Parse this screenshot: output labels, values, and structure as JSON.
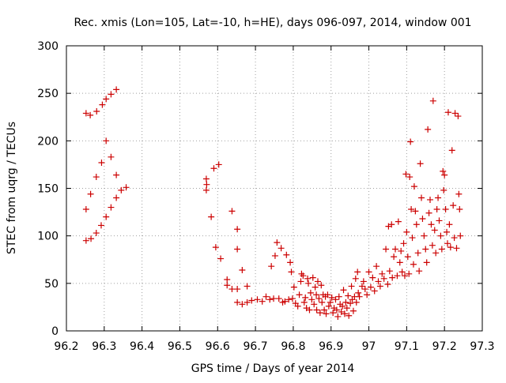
{
  "chart_data": {
    "type": "scatter",
    "title": "Rec. xmis (Lon=105, Lat=-10, h=HE), days 096-097, 2014, window 001",
    "xlabel": "GPS time / Days of year 2014",
    "ylabel": "STEC from uqrg / TECUs",
    "xlim": [
      96.2,
      97.3
    ],
    "ylim": [
      0,
      300
    ],
    "xticks": [
      "96.2",
      "96.3",
      "96.4",
      "96.5",
      "96.6",
      "96.7",
      "96.8",
      "96.9",
      "97",
      "97.1",
      "97.2",
      "97.3"
    ],
    "yticks": [
      "0",
      "50",
      "100",
      "150",
      "200",
      "250",
      "300"
    ],
    "grid": true,
    "marker": "+",
    "color": "#cc0000",
    "points": [
      [
        96.252,
        229
      ],
      [
        96.263,
        227
      ],
      [
        96.28,
        231
      ],
      [
        96.295,
        238
      ],
      [
        96.305,
        244
      ],
      [
        96.318,
        249
      ],
      [
        96.332,
        254
      ],
      [
        96.252,
        128
      ],
      [
        96.264,
        144
      ],
      [
        96.279,
        162
      ],
      [
        96.293,
        177
      ],
      [
        96.305,
        200
      ],
      [
        96.318,
        183
      ],
      [
        96.332,
        164
      ],
      [
        96.345,
        148
      ],
      [
        96.358,
        151
      ],
      [
        96.252,
        95
      ],
      [
        96.265,
        97
      ],
      [
        96.279,
        103
      ],
      [
        96.292,
        111
      ],
      [
        96.305,
        120
      ],
      [
        96.318,
        130
      ],
      [
        96.332,
        140
      ],
      [
        96.57,
        160
      ],
      [
        96.571,
        154
      ],
      [
        96.57,
        148
      ],
      [
        96.59,
        171
      ],
      [
        96.603,
        175
      ],
      [
        96.583,
        120
      ],
      [
        96.595,
        88
      ],
      [
        96.608,
        76
      ],
      [
        96.625,
        54
      ],
      [
        96.625,
        48
      ],
      [
        96.638,
        44
      ],
      [
        96.652,
        44
      ],
      [
        96.638,
        126
      ],
      [
        96.652,
        107
      ],
      [
        96.652,
        86
      ],
      [
        96.665,
        64
      ],
      [
        96.678,
        47
      ],
      [
        96.652,
        30
      ],
      [
        96.665,
        28
      ],
      [
        96.678,
        30
      ],
      [
        96.69,
        32
      ],
      [
        96.705,
        33
      ],
      [
        96.718,
        31
      ],
      [
        96.728,
        36
      ],
      [
        96.738,
        33
      ],
      [
        96.742,
        68
      ],
      [
        96.748,
        34
      ],
      [
        96.752,
        79
      ],
      [
        96.757,
        93
      ],
      [
        96.762,
        34
      ],
      [
        96.768,
        87
      ],
      [
        96.772,
        30
      ],
      [
        96.778,
        31
      ],
      [
        96.782,
        80
      ],
      [
        96.788,
        33
      ],
      [
        96.792,
        72
      ],
      [
        96.795,
        62
      ],
      [
        96.798,
        34
      ],
      [
        96.802,
        46
      ],
      [
        96.806,
        29
      ],
      [
        96.812,
        26
      ],
      [
        96.816,
        38
      ],
      [
        96.82,
        52
      ],
      [
        96.822,
        60
      ],
      [
        96.826,
        58
      ],
      [
        96.829,
        30
      ],
      [
        96.832,
        35
      ],
      [
        96.835,
        24
      ],
      [
        96.838,
        55
      ],
      [
        96.84,
        50
      ],
      [
        96.843,
        22
      ],
      [
        96.846,
        40
      ],
      [
        96.849,
        33
      ],
      [
        96.852,
        56
      ],
      [
        96.855,
        28
      ],
      [
        96.858,
        46
      ],
      [
        96.861,
        38
      ],
      [
        96.862,
        22
      ],
      [
        96.865,
        52
      ],
      [
        96.868,
        34
      ],
      [
        96.871,
        19
      ],
      [
        96.874,
        48
      ],
      [
        96.876,
        30
      ],
      [
        96.879,
        38
      ],
      [
        96.882,
        22
      ],
      [
        96.885,
        36
      ],
      [
        96.887,
        18
      ],
      [
        96.891,
        38
      ],
      [
        96.894,
        26
      ],
      [
        96.898,
        30
      ],
      [
        96.902,
        35
      ],
      [
        96.905,
        19
      ],
      [
        96.908,
        24
      ],
      [
        96.912,
        33
      ],
      [
        96.915,
        22
      ],
      [
        96.918,
        15
      ],
      [
        96.921,
        36
      ],
      [
        96.924,
        28
      ],
      [
        96.927,
        20
      ],
      [
        96.93,
        26
      ],
      [
        96.933,
        43
      ],
      [
        96.936,
        18
      ],
      [
        96.939,
        30
      ],
      [
        96.942,
        24
      ],
      [
        96.945,
        37
      ],
      [
        96.947,
        16
      ],
      [
        96.951,
        29
      ],
      [
        96.954,
        47
      ],
      [
        96.956,
        33
      ],
      [
        96.959,
        21
      ],
      [
        96.962,
        36
      ],
      [
        96.965,
        55
      ],
      [
        96.967,
        30
      ],
      [
        96.97,
        62
      ],
      [
        96.972,
        40
      ],
      [
        96.975,
        36
      ],
      [
        96.982,
        47
      ],
      [
        96.986,
        52
      ],
      [
        96.99,
        44
      ],
      [
        96.995,
        38
      ],
      [
        97.0,
        62
      ],
      [
        97.005,
        46
      ],
      [
        97.01,
        56
      ],
      [
        97.015,
        42
      ],
      [
        97.02,
        68
      ],
      [
        97.025,
        52
      ],
      [
        97.03,
        47
      ],
      [
        97.035,
        60
      ],
      [
        97.04,
        55
      ],
      [
        97.045,
        86
      ],
      [
        97.05,
        49
      ],
      [
        97.052,
        110
      ],
      [
        97.055,
        63
      ],
      [
        97.06,
        112
      ],
      [
        97.062,
        56
      ],
      [
        97.066,
        78
      ],
      [
        97.07,
        86
      ],
      [
        97.075,
        58
      ],
      [
        97.078,
        115
      ],
      [
        97.082,
        72
      ],
      [
        97.085,
        84
      ],
      [
        97.088,
        62
      ],
      [
        97.092,
        92
      ],
      [
        97.095,
        58
      ],
      [
        97.098,
        165
      ],
      [
        97.1,
        104
      ],
      [
        97.103,
        78
      ],
      [
        97.106,
        60
      ],
      [
        97.108,
        162
      ],
      [
        97.11,
        199
      ],
      [
        97.112,
        128
      ],
      [
        97.115,
        98
      ],
      [
        97.118,
        70
      ],
      [
        97.12,
        152
      ],
      [
        97.123,
        126
      ],
      [
        97.126,
        112
      ],
      [
        97.13,
        82
      ],
      [
        97.133,
        63
      ],
      [
        97.136,
        176
      ],
      [
        97.139,
        140
      ],
      [
        97.142,
        118
      ],
      [
        97.146,
        100
      ],
      [
        97.15,
        86
      ],
      [
        97.153,
        72
      ],
      [
        97.156,
        212
      ],
      [
        97.159,
        124
      ],
      [
        97.162,
        138
      ],
      [
        97.165,
        112
      ],
      [
        97.168,
        90
      ],
      [
        97.17,
        242
      ],
      [
        97.174,
        106
      ],
      [
        97.177,
        82
      ],
      [
        97.18,
        128
      ],
      [
        97.183,
        140
      ],
      [
        97.186,
        116
      ],
      [
        97.19,
        100
      ],
      [
        97.193,
        86
      ],
      [
        97.196,
        168
      ],
      [
        97.198,
        148
      ],
      [
        97.2,
        164
      ],
      [
        97.203,
        128
      ],
      [
        97.206,
        104
      ],
      [
        97.208,
        92
      ],
      [
        97.21,
        230
      ],
      [
        97.213,
        112
      ],
      [
        97.216,
        88
      ],
      [
        97.22,
        190
      ],
      [
        97.223,
        132
      ],
      [
        97.226,
        98
      ],
      [
        97.228,
        229
      ],
      [
        97.232,
        87
      ],
      [
        97.236,
        226
      ],
      [
        97.238,
        144
      ],
      [
        97.24,
        128
      ],
      [
        97.242,
        100
      ]
    ]
  }
}
